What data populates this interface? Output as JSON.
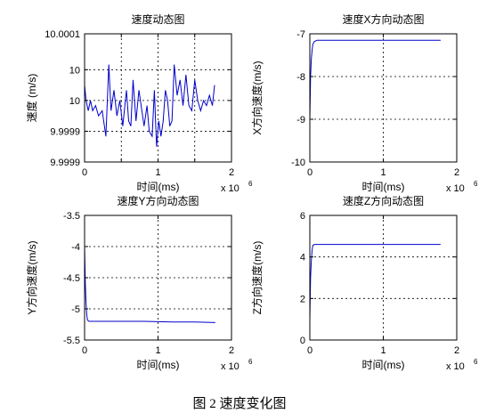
{
  "figure_caption": "图 2 速度变化图",
  "chart_data": [
    {
      "type": "line",
      "title": "速度动态图",
      "xlabel": "时间(ms)",
      "ylabel": "速度 (m/s)",
      "x_exponent": "x 10",
      "x_exponent_power": "6",
      "xlim": [
        0,
        2
      ],
      "ylim": [
        9.99985,
        10.0001
      ],
      "xticks": [
        0,
        0.5,
        1,
        1.5,
        2
      ],
      "yticks": [
        9.99985,
        9.99991,
        9.99997,
        10.00003,
        10.0001
      ],
      "xtick_labels": [
        "0",
        "",
        "1",
        "",
        "2"
      ],
      "ytick_labels": [
        "9.9999",
        "9.9999",
        "10",
        "10",
        "10.0001"
      ],
      "grid": true,
      "line_color": "#0000cc",
      "series": [
        {
          "x": [
            0,
            0.02,
            0.05,
            0.08,
            0.11,
            0.15,
            0.19,
            0.24,
            0.29,
            0.33,
            0.36,
            0.4,
            0.44,
            0.48,
            0.52,
            0.57,
            0.6,
            0.63,
            0.66,
            0.7,
            0.74,
            0.78,
            0.81,
            0.85,
            0.88,
            0.92,
            0.95,
            0.98,
            1.01,
            1.04,
            1.07,
            1.1,
            1.13,
            1.16,
            1.19,
            1.22,
            1.26,
            1.3,
            1.34,
            1.38,
            1.42,
            1.46,
            1.5,
            1.54,
            1.58,
            1.62,
            1.66,
            1.7,
            1.74,
            1.77
          ],
          "y": [
            10.0,
            9.99997,
            9.99995,
            9.99997,
            9.99995,
            9.99996,
            9.99994,
            9.99995,
            9.9999,
            10.00004,
            9.99995,
            9.99999,
            9.99994,
            9.99997,
            9.99992,
            9.99999,
            9.99993,
            9.99992,
            10.00001,
            9.99993,
            9.99999,
            9.99995,
            9.99992,
            9.99996,
            9.99991,
            9.9999,
            9.99999,
            9.99988,
            9.99993,
            9.9999,
            9.99993,
            9.99999,
            9.99997,
            9.99992,
            9.99993,
            10.00004,
            9.99998,
            10.00001,
            9.99996,
            10.00002,
            9.99996,
            9.99995,
            10.00001,
            9.99997,
            9.99995,
            9.99997,
            9.99996,
            9.99998,
            9.99996,
            10.0
          ]
        }
      ]
    },
    {
      "type": "line",
      "title": "速度X方向动态图",
      "xlabel": "时间(ms)",
      "ylabel": "X方向速度(m/s)",
      "x_exponent": "x 10",
      "x_exponent_power": "6",
      "xlim": [
        0,
        2
      ],
      "ylim": [
        -10,
        -7
      ],
      "xticks": [
        0,
        1,
        2
      ],
      "yticks": [
        -10,
        -9,
        -8,
        -7
      ],
      "xtick_labels": [
        "0",
        "1",
        "2"
      ],
      "ytick_labels": [
        "-10",
        "-9",
        "-8",
        "-7"
      ],
      "grid": true,
      "line_color": "#0000cc",
      "series": [
        {
          "x": [
            0,
            0.005,
            0.01,
            0.02,
            0.03,
            0.04,
            0.06,
            0.1,
            0.3,
            0.6,
            1.0,
            1.4,
            1.78
          ],
          "y": [
            -9.0,
            -8.5,
            -8.0,
            -7.6,
            -7.4,
            -7.25,
            -7.18,
            -7.15,
            -7.15,
            -7.15,
            -7.15,
            -7.15,
            -7.15
          ]
        }
      ]
    },
    {
      "type": "line",
      "title": "速度Y方向动态图",
      "xlabel": "时间(ms)",
      "ylabel": "Y方向速度(m/s)",
      "x_exponent": "x 10",
      "x_exponent_power": "6",
      "xlim": [
        0,
        2
      ],
      "ylim": [
        -5.5,
        -3.5
      ],
      "xticks": [
        0,
        1,
        2
      ],
      "yticks": [
        -5.5,
        -5,
        -4.5,
        -4,
        -3.5
      ],
      "xtick_labels": [
        "0",
        "1",
        "2"
      ],
      "ytick_labels": [
        "-5.5",
        "-5",
        "-4.5",
        "-4",
        "-3.5"
      ],
      "grid": true,
      "line_color": "#0000cc",
      "series": [
        {
          "x": [
            0,
            0.005,
            0.01,
            0.02,
            0.03,
            0.04,
            0.06,
            0.1,
            0.4,
            0.8,
            1.2,
            1.5,
            1.78
          ],
          "y": [
            -4.0,
            -4.3,
            -4.6,
            -4.9,
            -5.1,
            -5.18,
            -5.2,
            -5.2,
            -5.2,
            -5.2,
            -5.21,
            -5.21,
            -5.22
          ]
        }
      ]
    },
    {
      "type": "line",
      "title": "速度Z方向动态图",
      "xlabel": "时间(ms)",
      "ylabel": "Z方向速度(m/s)",
      "x_exponent": "x 10",
      "x_exponent_power": "6",
      "xlim": [
        0,
        2
      ],
      "ylim": [
        0,
        6
      ],
      "xticks": [
        0,
        1,
        2
      ],
      "yticks": [
        0,
        2,
        4,
        6
      ],
      "xtick_labels": [
        "0",
        "1",
        "2"
      ],
      "ytick_labels": [
        "0",
        "2",
        "4",
        "6"
      ],
      "grid": true,
      "line_color": "#0000cc",
      "series": [
        {
          "x": [
            0,
            0.005,
            0.01,
            0.02,
            0.03,
            0.04,
            0.06,
            0.1,
            0.4,
            0.8,
            1.2,
            1.5,
            1.78
          ],
          "y": [
            1.0,
            2.0,
            3.0,
            3.8,
            4.3,
            4.55,
            4.6,
            4.6,
            4.6,
            4.6,
            4.6,
            4.6,
            4.6
          ]
        }
      ]
    }
  ]
}
